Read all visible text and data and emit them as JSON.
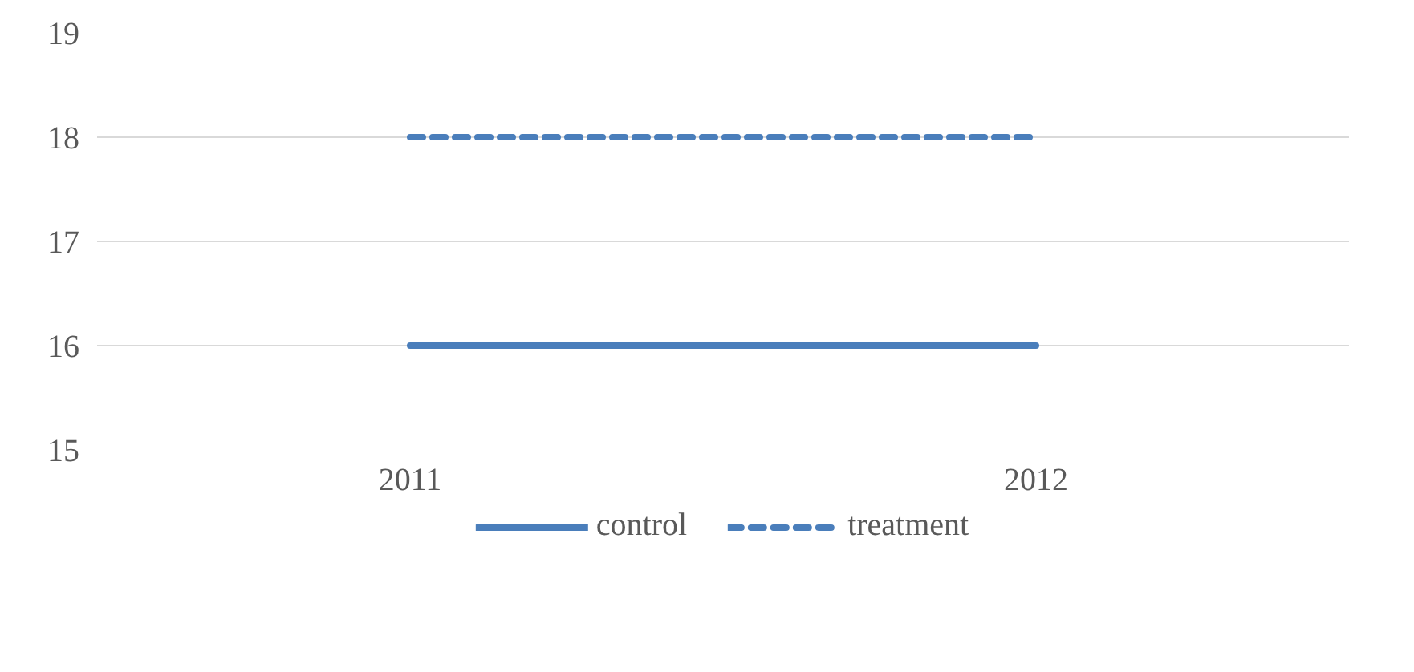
{
  "chart_data": {
    "type": "line",
    "categories": [
      "2011",
      "2012"
    ],
    "series": [
      {
        "name": "control",
        "color": "#4a7ebb",
        "values": [
          16,
          16
        ],
        "line_style": "solid"
      },
      {
        "name": "treatment",
        "color": "#4a7ebb",
        "values": [
          18,
          18
        ],
        "line_style": "dashed"
      }
    ],
    "ylim": [
      15,
      19
    ],
    "yticks": [
      15,
      16,
      17,
      18,
      19
    ],
    "grid": "y",
    "legend": "bottom",
    "marker": "none"
  }
}
